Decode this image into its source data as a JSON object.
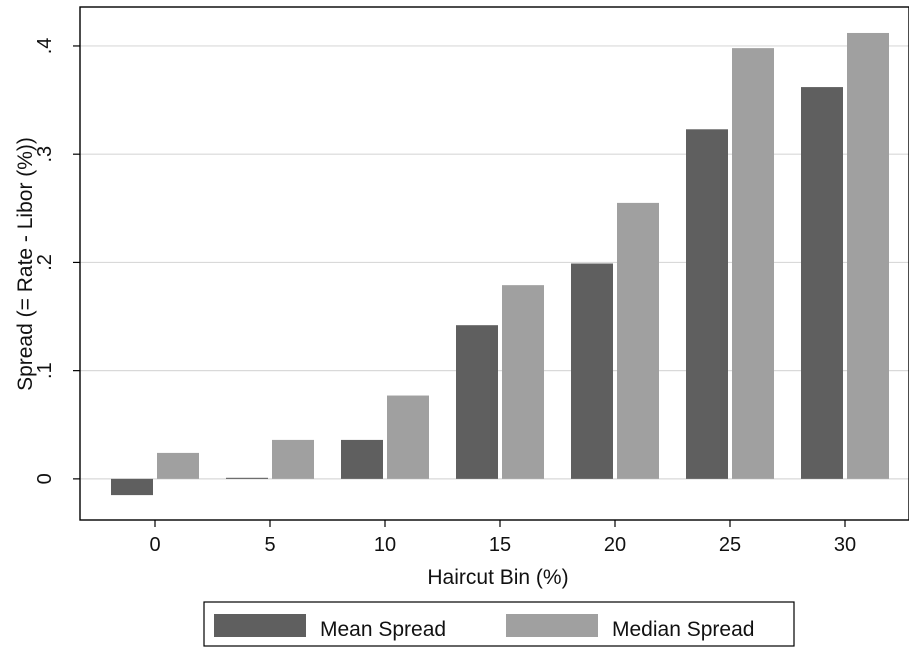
{
  "chart_data": {
    "type": "bar",
    "categories": [
      "0",
      "5",
      "10",
      "15",
      "20",
      "25",
      "30"
    ],
    "series": [
      {
        "name": "Mean Spread",
        "color": "#5f5f5f",
        "values": [
          -0.015,
          0.001,
          0.036,
          0.142,
          0.199,
          0.323,
          0.362
        ]
      },
      {
        "name": "Median Spread",
        "color": "#a0a0a0",
        "values": [
          0.024,
          0.036,
          0.077,
          0.179,
          0.255,
          0.398,
          0.412
        ]
      }
    ],
    "title": "",
    "xlabel": "Haircut Bin (%)",
    "ylabel": "Spread (= Rate - Libor (%))",
    "ylim": [
      -0.038,
      0.436
    ],
    "yticks": [
      {
        "value": 0,
        "label": "0"
      },
      {
        "value": 0.1,
        "label": ".1"
      },
      {
        "value": 0.2,
        "label": ".2"
      },
      {
        "value": 0.3,
        "label": ".3"
      },
      {
        "value": 0.4,
        "label": ".4"
      }
    ],
    "grid": true,
    "legend_position": "bottom"
  }
}
